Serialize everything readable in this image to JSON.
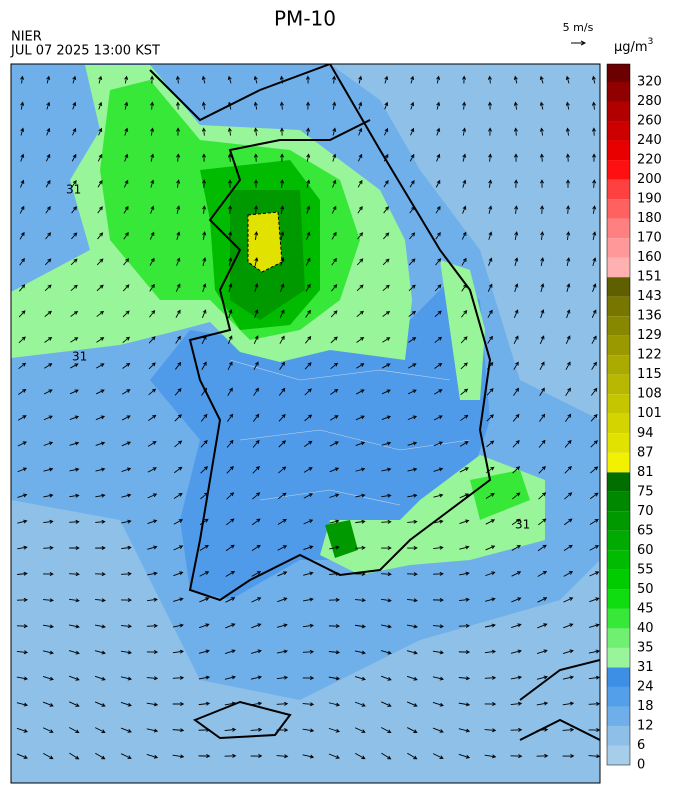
{
  "header": {
    "title": "PM-10",
    "agency": "NIER",
    "datetime": "JUL 07 2025 13:00 KST",
    "wind_scale": "5 m/s"
  },
  "legend": {
    "unit": "μg/m",
    "unit_sup": "3",
    "levels": [
      0,
      6,
      12,
      18,
      24,
      31,
      35,
      40,
      45,
      50,
      55,
      60,
      65,
      70,
      75,
      81,
      87,
      94,
      101,
      108,
      115,
      122,
      129,
      136,
      143,
      151,
      160,
      170,
      180,
      190,
      200,
      220,
      240,
      260,
      280,
      320
    ],
    "colors": [
      "#a6cdea",
      "#8dbfe9",
      "#6eaeea",
      "#539fea",
      "#3d8fe6",
      "#99f599",
      "#70f070",
      "#38e838",
      "#10dd10",
      "#00cc00",
      "#00bb00",
      "#00aa00",
      "#009900",
      "#008800",
      "#006f00",
      "#f2f200",
      "#e2e200",
      "#d4d400",
      "#c6c600",
      "#b8b800",
      "#aaaa00",
      "#9a9a00",
      "#888800",
      "#777700",
      "#5f5f00",
      "#ffb0b0",
      "#ff9898",
      "#ff8080",
      "#ff6060",
      "#ff4040",
      "#ff1010",
      "#e80000",
      "#cc0000",
      "#b00000",
      "#900000",
      "#6a0000"
    ]
  },
  "map": {
    "contour_labels": [
      "31",
      "31",
      "31"
    ]
  }
}
